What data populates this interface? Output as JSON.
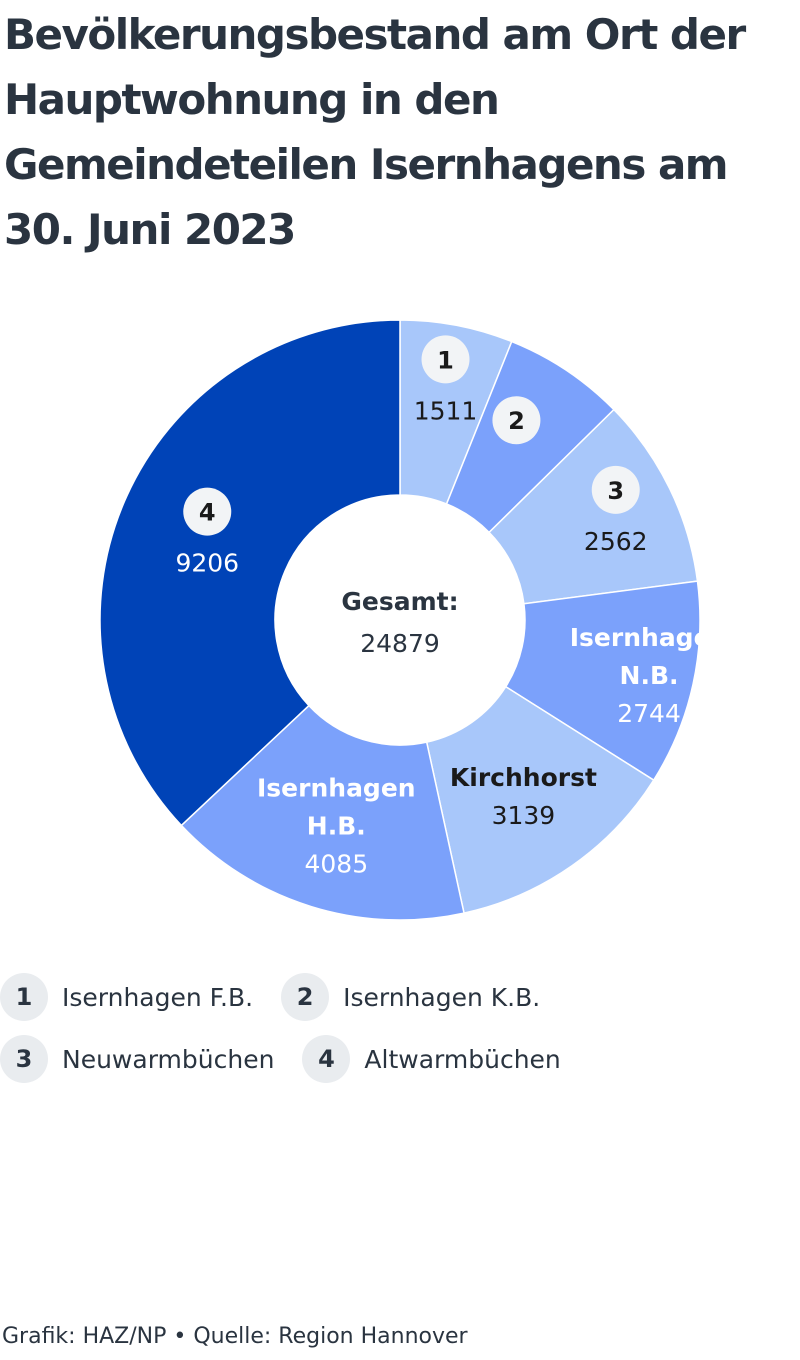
{
  "title": "Bevölkerungsbestand am Ort der Hauptwohnung in den Gemeindeteilen Isernhagens am 30. Juni 2023",
  "chart_data": {
    "type": "pie",
    "variant": "donut",
    "center_label": "Gesamt:",
    "center_value": "24879",
    "slices": [
      {
        "badge": "1",
        "label": "",
        "value": 1511,
        "color": "#a8c7fa",
        "text_color": "#1a1a1a"
      },
      {
        "badge": "2",
        "label": "",
        "value": 1632,
        "color": "#7ba1fb",
        "text_color": "#1a1a1a",
        "value_label": ""
      },
      {
        "badge": "3",
        "label": "",
        "value": 2562,
        "color": "#a8c7fa",
        "text_color": "#1a1a1a"
      },
      {
        "badge": "",
        "label": "Isernhagen N.B.",
        "value": 2744,
        "color": "#7ba1fb",
        "text_color": "#ffffff"
      },
      {
        "badge": "",
        "label": "Kirchhorst",
        "value": 3139,
        "color": "#a8c7fa",
        "text_color": "#1a1a1a"
      },
      {
        "badge": "",
        "label": "Isernhagen H.B.",
        "value": 4085,
        "color": "#7ba1fb",
        "text_color": "#ffffff"
      },
      {
        "badge": "4",
        "label": "",
        "value": 9206,
        "color": "#0043b7",
        "text_color": "#ffffff"
      }
    ]
  },
  "legend": [
    {
      "badge": "1",
      "label": "Isernhagen F.B."
    },
    {
      "badge": "2",
      "label": "Isernhagen K.B."
    },
    {
      "badge": "3",
      "label": "Neuwarmbüchen"
    },
    {
      "badge": "4",
      "label": "Altwarmbüchen"
    }
  ],
  "footer": "Grafik: HAZ/NP • Quelle: Region Hannover"
}
